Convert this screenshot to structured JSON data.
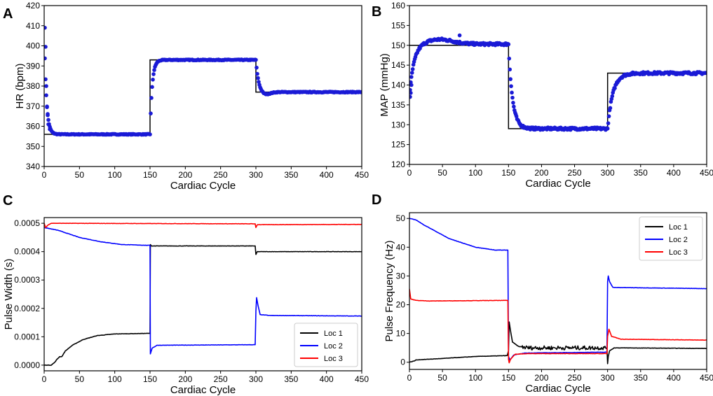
{
  "colors": {
    "black": "#000000",
    "blue": "#0000ff",
    "scatter": "#1a1ad6",
    "red": "#ff0000",
    "grid": "#ffffff"
  },
  "chart_data": [
    {
      "panel": "A",
      "type": "line+scatter",
      "xlabel": "Cardiac Cycle",
      "ylabel": "HR (bpm)",
      "xlim": [
        0,
        450
      ],
      "ylim": [
        340,
        420
      ],
      "xticks": [
        0,
        50,
        100,
        150,
        200,
        250,
        300,
        350,
        400,
        450
      ],
      "yticks": [
        340,
        350,
        360,
        370,
        380,
        390,
        400,
        410,
        420
      ],
      "setpoint": {
        "name": "target",
        "steps": [
          [
            0,
            356
          ],
          [
            150,
            393
          ],
          [
            300,
            377
          ],
          [
            450,
            377
          ]
        ]
      },
      "measured": {
        "name": "measured",
        "segments": [
          {
            "x0": 0,
            "x1": 150,
            "start": 409,
            "level": 356,
            "tau": 3
          },
          {
            "x0": 150,
            "x1": 300,
            "start": 356,
            "level": 393,
            "tau": 3
          },
          {
            "x0": 300,
            "x1": 450,
            "start": 393,
            "level": 377,
            "tau": 4,
            "undershoot": -1.5
          }
        ],
        "noise": 0.2
      }
    },
    {
      "panel": "B",
      "type": "line+scatter",
      "xlabel": "Cardiac Cycle",
      "ylabel": "MAP (mmHg)",
      "xlim": [
        0,
        450
      ],
      "ylim": [
        120,
        160
      ],
      "xticks": [
        0,
        50,
        100,
        150,
        200,
        250,
        300,
        350,
        400,
        450
      ],
      "yticks": [
        120,
        125,
        130,
        135,
        140,
        145,
        150,
        155,
        160
      ],
      "setpoint": {
        "name": "target",
        "steps": [
          [
            0,
            150
          ],
          [
            150,
            129
          ],
          [
            300,
            143
          ],
          [
            450,
            143
          ]
        ]
      },
      "measured": {
        "name": "measured",
        "segments": [
          {
            "x0": 0,
            "x1": 150,
            "start": 137,
            "level": 150.3,
            "tau": 7,
            "overshoot": 1.2
          },
          {
            "x0": 150,
            "x1": 300,
            "start": 150,
            "level": 129,
            "tau": 6
          },
          {
            "x0": 300,
            "x1": 450,
            "start": 129,
            "level": 143,
            "tau": 8
          }
        ],
        "noise": 0.3
      }
    },
    {
      "panel": "C",
      "type": "line",
      "xlabel": "Cardiac Cycle",
      "ylabel": "Pulse Width (s)",
      "xlim": [
        0,
        450
      ],
      "ylim": [
        -2e-05,
        0.00052
      ],
      "xticks": [
        0,
        50,
        100,
        150,
        200,
        250,
        300,
        350,
        400,
        450
      ],
      "yticks": [
        "0.0000",
        "0.0001",
        "0.0002",
        "0.0003",
        "0.0004",
        "0.0005"
      ],
      "legend": {
        "placement": "lower-right"
      },
      "series": [
        {
          "name": "Loc 1",
          "color": "#000000",
          "points": [
            [
              0,
              0
            ],
            [
              10,
              0
            ],
            [
              15,
              1e-05
            ],
            [
              18,
              2e-05
            ],
            [
              22,
              3e-05
            ],
            [
              25,
              3e-05
            ],
            [
              30,
              5e-05
            ],
            [
              40,
              7e-05
            ],
            [
              55,
              9e-05
            ],
            [
              75,
              0.000104
            ],
            [
              100,
              0.00011
            ],
            [
              150,
              0.000112
            ],
            [
              150.5,
              0.000425
            ],
            [
              152,
              0.00042
            ],
            [
              299,
              0.00042
            ],
            [
              300,
              0.00039
            ],
            [
              302,
              0.0004
            ],
            [
              450,
              0.0004
            ]
          ]
        },
        {
          "name": "Loc 2",
          "color": "#0000ff",
          "points": [
            [
              0,
              0.000485
            ],
            [
              20,
              0.000475
            ],
            [
              50,
              0.00045
            ],
            [
              80,
              0.000435
            ],
            [
              110,
              0.000425
            ],
            [
              150,
              0.000422
            ],
            [
              150.5,
              4e-05
            ],
            [
              153,
              6e-05
            ],
            [
              160,
              7e-05
            ],
            [
              299,
              7.2e-05
            ],
            [
              300,
              0.00019
            ],
            [
              301,
              0.000238
            ],
            [
              303,
              0.00021
            ],
            [
              306,
              0.000178
            ],
            [
              320,
              0.000175
            ],
            [
              450,
              0.000173
            ]
          ]
        },
        {
          "name": "Loc 3",
          "color": "#ff0000",
          "points": [
            [
              0,
              0.0005
            ],
            [
              2,
              0.000485
            ],
            [
              6,
              0.000495
            ],
            [
              10,
              0.0005
            ],
            [
              150,
              0.000499
            ],
            [
              299,
              0.000498
            ],
            [
              300,
              0.000485
            ],
            [
              302,
              0.000495
            ],
            [
              450,
              0.000496
            ]
          ]
        }
      ]
    },
    {
      "panel": "D",
      "type": "line",
      "xlabel": "Cardiac Cycle",
      "ylabel": "Pulse Frequency (Hz)",
      "xlim": [
        0,
        450
      ],
      "ylim": [
        -2.5,
        52
      ],
      "xticks": [
        0,
        50,
        100,
        150,
        200,
        250,
        300,
        350,
        400,
        450
      ],
      "yticks": [
        0,
        10,
        20,
        30,
        40,
        50
      ],
      "legend": {
        "placement": "top-right"
      },
      "series": [
        {
          "name": "Loc 1",
          "color": "#000000",
          "points": [
            [
              0,
              0
            ],
            [
              8,
              0.5
            ],
            [
              10,
              0.8
            ],
            [
              50,
              1.3
            ],
            [
              100,
              2
            ],
            [
              148,
              2.3
            ],
            [
              150,
              4
            ],
            [
              151,
              14
            ],
            [
              153,
              11
            ],
            [
              156,
              7
            ],
            [
              165,
              5.5
            ],
            [
              180,
              5
            ],
            [
              299,
              5
            ],
            [
              300,
              -0.5
            ],
            [
              301,
              2
            ],
            [
              303,
              4
            ],
            [
              310,
              5
            ],
            [
              450,
              4.8
            ]
          ]
        },
        {
          "name": "Loc 2",
          "color": "#0000ff",
          "points": [
            [
              0,
              50
            ],
            [
              10,
              49.5
            ],
            [
              20,
              48
            ],
            [
              40,
              45.5
            ],
            [
              60,
              43
            ],
            [
              80,
              41.5
            ],
            [
              100,
              40
            ],
            [
              130,
              39
            ],
            [
              149,
              39
            ],
            [
              150,
              2
            ],
            [
              152,
              0.8
            ],
            [
              158,
              2.5
            ],
            [
              175,
              3.2
            ],
            [
              299,
              3.5
            ],
            [
              300,
              28
            ],
            [
              301,
              30
            ],
            [
              303,
              28
            ],
            [
              308,
              26
            ],
            [
              450,
              25.6
            ]
          ]
        },
        {
          "name": "Loc 3",
          "color": "#ff0000",
          "points": [
            [
              0,
              25.5
            ],
            [
              2,
              22
            ],
            [
              10,
              21.5
            ],
            [
              30,
              21.3
            ],
            [
              149,
              21.5
            ],
            [
              150,
              1
            ],
            [
              151,
              -0.2
            ],
            [
              153,
              1
            ],
            [
              160,
              2.8
            ],
            [
              180,
              3
            ],
            [
              299,
              3
            ],
            [
              300,
              9
            ],
            [
              302,
              11.5
            ],
            [
              306,
              9
            ],
            [
              320,
              8
            ],
            [
              450,
              7.7
            ]
          ]
        }
      ]
    }
  ]
}
